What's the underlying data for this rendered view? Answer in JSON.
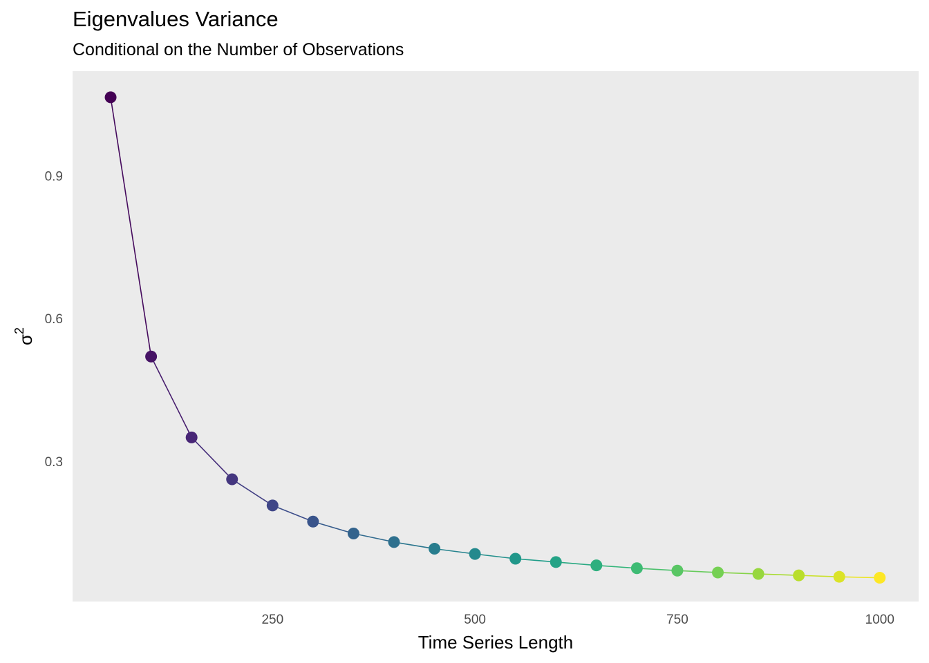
{
  "chart_data": {
    "type": "line",
    "title": "Eigenvalues Variance",
    "subtitle": "Conditional on the Number of Observations",
    "xlabel": "Time Series Length",
    "ylabel_symbol": "σ",
    "ylabel_superscript": "2",
    "x": [
      50,
      100,
      150,
      200,
      250,
      300,
      350,
      400,
      450,
      500,
      550,
      600,
      650,
      700,
      750,
      800,
      850,
      900,
      950,
      1000
    ],
    "y": [
      1.065,
      0.52,
      0.35,
      0.262,
      0.207,
      0.173,
      0.148,
      0.13,
      0.116,
      0.105,
      0.095,
      0.088,
      0.081,
      0.075,
      0.07,
      0.066,
      0.063,
      0.06,
      0.057,
      0.055
    ],
    "xlim": [
      3,
      1048
    ],
    "ylim": [
      0.005,
      1.12
    ],
    "xticks": [
      250,
      500,
      750,
      1000
    ],
    "xtick_labels": [
      "250",
      "500",
      "750",
      "1000"
    ],
    "yticks": [
      0.3,
      0.6,
      0.9
    ],
    "ytick_labels": [
      "0.3",
      "0.6",
      "0.9"
    ],
    "grid": false,
    "legend": "none",
    "panel_background": "#ebebeb",
    "color_scale": "viridis",
    "color_stops": [
      "#440154",
      "#482878",
      "#3e4989",
      "#31688e",
      "#26828e",
      "#1f9e89",
      "#35b779",
      "#6ece58",
      "#b5de2b",
      "#fde725"
    ]
  }
}
